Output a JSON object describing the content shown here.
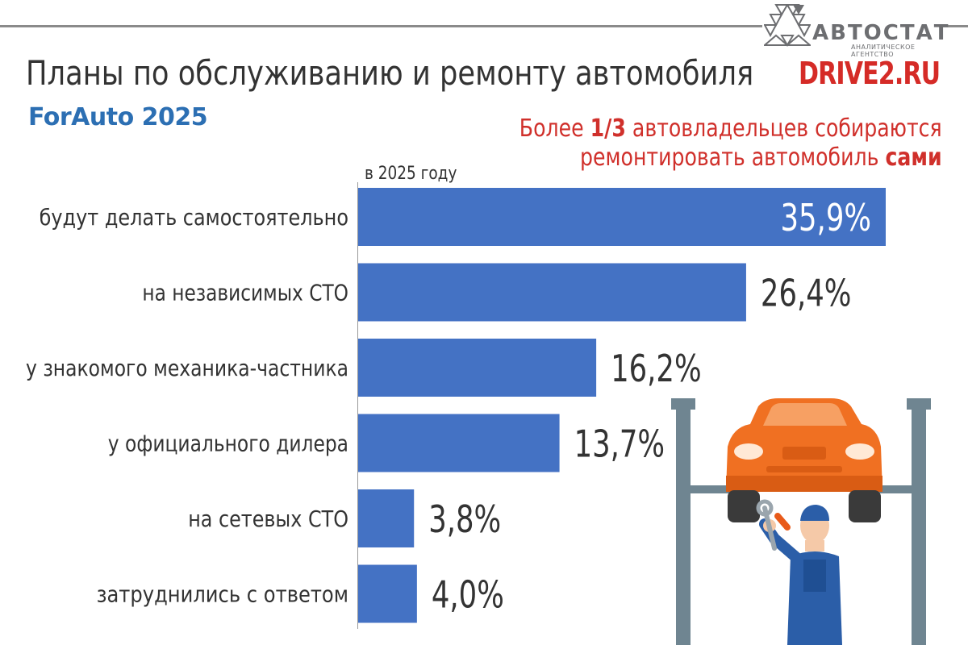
{
  "header": {
    "title": "Планы по обслуживанию и ремонту автомобиля",
    "source": "ForAuto 2025",
    "callout": {
      "part1": "Более ",
      "highlight1": "1/3",
      "part2": " автовладельцев собираются",
      "part3": "ремонтировать автомобиль ",
      "highlight2": "сами"
    }
  },
  "logos": {
    "avtostat": "АВТОСТАТ",
    "avtostat_sub": "АНАЛИТИЧЕСКОЕ АГЕНТСТВО",
    "drive2": "DRIVE2.RU"
  },
  "colors": {
    "bar": "#4472c4",
    "callout": "#d0302b",
    "source": "#2c6fb3",
    "brand_red": "#d52b27"
  },
  "illustration": {
    "icon": "mechanic-car-lift-icon"
  },
  "chart_data": {
    "type": "bar",
    "orientation": "horizontal",
    "subtitle": "в 2025 году",
    "categories": [
      "будут делать самостоятельно",
      "на независимых СТО",
      "у знакомого механика-частника",
      "у официального дилера",
      "на сетевых СТО",
      "затруднились с ответом"
    ],
    "values": [
      35.9,
      26.4,
      16.2,
      13.7,
      3.8,
      4.0
    ],
    "value_labels": [
      "35,9%",
      "26,4%",
      "16,2%",
      "13,7%",
      "3,8%",
      "4,0%"
    ],
    "unit": "%",
    "xlim": [
      0,
      35.9
    ],
    "grid": false,
    "legend": "none"
  }
}
